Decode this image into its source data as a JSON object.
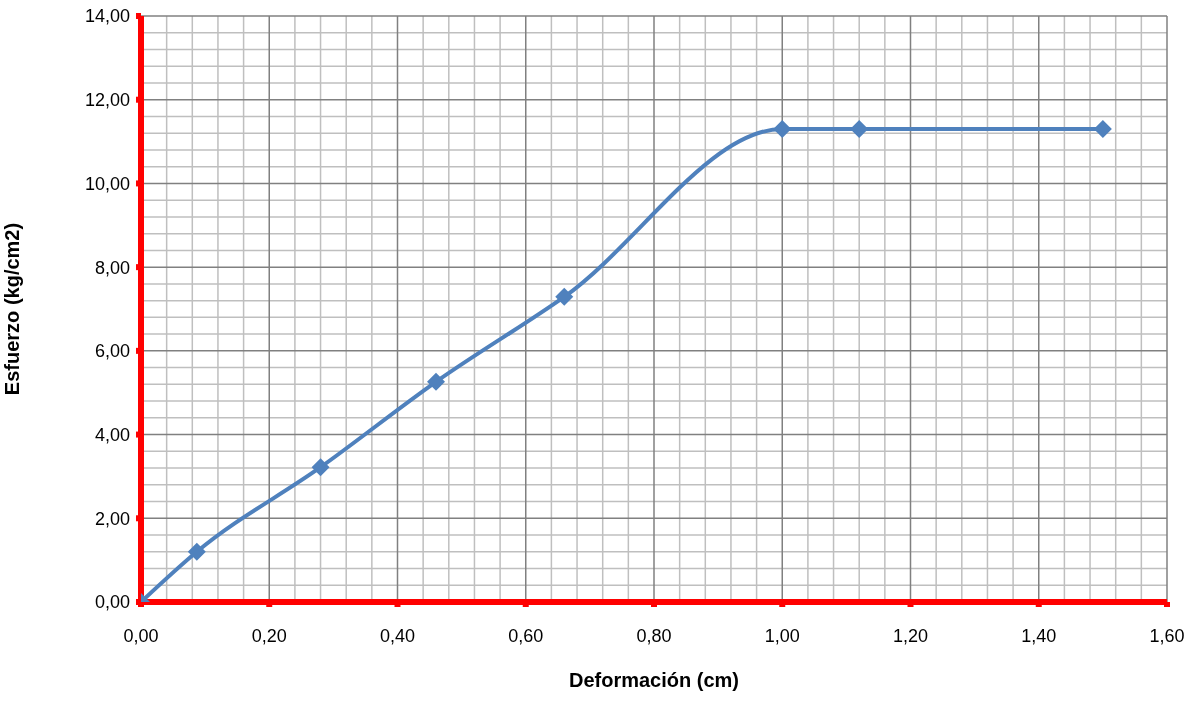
{
  "chart_data": {
    "type": "line",
    "xlabel": "Deformación (cm)",
    "ylabel": "Esfuerzo (kg/cm2)",
    "x": [
      0,
      0.087,
      0.28,
      0.46,
      0.66,
      1.0,
      1.12,
      1.5
    ],
    "series": [
      {
        "color": "#4f81bd",
        "values": [
          0,
          1.2,
          3.22,
          5.26,
          7.29,
          11.3,
          11.3,
          11.3
        ]
      }
    ],
    "xlim": [
      0,
      1.6
    ],
    "xticks": [
      {
        "value": 0,
        "label": "0,00"
      },
      {
        "value": 0.2,
        "label": "0,20"
      },
      {
        "value": 0.4,
        "label": "0,40"
      },
      {
        "value": 0.6,
        "label": "0,60"
      },
      {
        "value": 0.8,
        "label": "0,80"
      },
      {
        "value": 1.0,
        "label": "1,00"
      },
      {
        "value": 1.2,
        "label": "1,20"
      },
      {
        "value": 1.4,
        "label": "1,40"
      },
      {
        "value": 1.6,
        "label": "1,60"
      }
    ],
    "ylim": [
      0,
      14
    ],
    "yticks": [
      {
        "value": 0,
        "label": "0,00"
      },
      {
        "value": 2,
        "label": "2,00"
      },
      {
        "value": 4,
        "label": "4,00"
      },
      {
        "value": 6,
        "label": "6,00"
      },
      {
        "value": 8,
        "label": "8,00"
      },
      {
        "value": 10,
        "label": "10,00"
      },
      {
        "value": 12,
        "label": "12,00"
      },
      {
        "value": 14,
        "label": "14,00"
      }
    ],
    "grid": true,
    "marker": "diamond",
    "line_style": "solid",
    "legend": false
  }
}
